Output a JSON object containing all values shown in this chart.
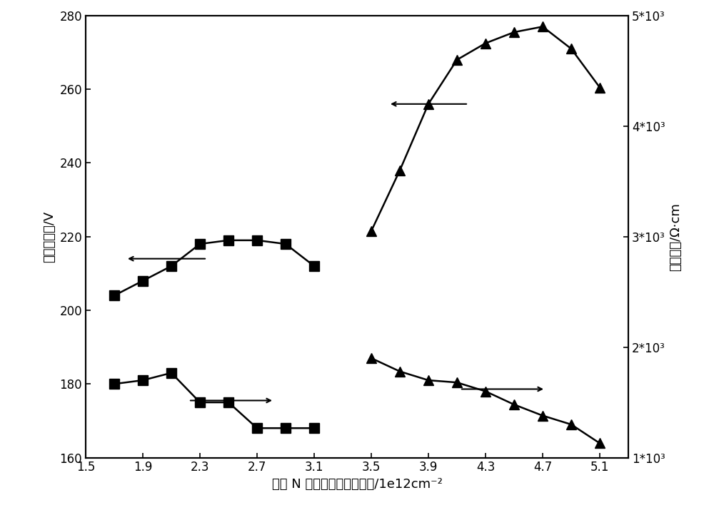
{
  "xlabel": "第一 N 型轻掺杂区掺杂浓度/1e12cm⁻²",
  "ylabel_left": "击穿电压値/V",
  "ylabel_right": "导通电阻/Ω·cm",
  "xlim": [
    1.5,
    5.3
  ],
  "ylim_left": [
    160,
    280
  ],
  "ylim_right": [
    1000,
    5000
  ],
  "xticks": [
    1.5,
    1.9,
    2.3,
    2.7,
    3.1,
    3.5,
    3.9,
    4.3,
    4.7,
    5.1
  ],
  "yticks_left": [
    160,
    180,
    200,
    220,
    240,
    260,
    280
  ],
  "yticks_right_vals": [
    1000,
    2000,
    3000,
    4000,
    5000
  ],
  "yticks_right_labels": [
    "1*10³",
    "2*10³",
    "3*10³",
    "4*10³",
    "5*10³"
  ],
  "sq_x": [
    1.7,
    1.9,
    2.1,
    2.3,
    2.5,
    2.7,
    2.9,
    3.1
  ],
  "sq_y_up": [
    204,
    208,
    212,
    218,
    219,
    219,
    218,
    212
  ],
  "sq_y_low": [
    180,
    181,
    183,
    175,
    175,
    168,
    168,
    168
  ],
  "tri_x": [
    3.5,
    3.7,
    3.9,
    4.1,
    4.3,
    4.5,
    4.7,
    4.9,
    5.1
  ],
  "tri_y_up_R": [
    3050,
    3600,
    4200,
    4600,
    4750,
    4850,
    4900,
    4700,
    4350
  ],
  "tri_y_lo_R": [
    1900,
    1780,
    1700,
    1680,
    1600,
    1480,
    1380,
    1300,
    1130
  ],
  "background_color": "#ffffff",
  "line_color": "#000000",
  "marker_color": "#000000",
  "figsize": [
    10.0,
    7.29
  ],
  "dpi": 100
}
